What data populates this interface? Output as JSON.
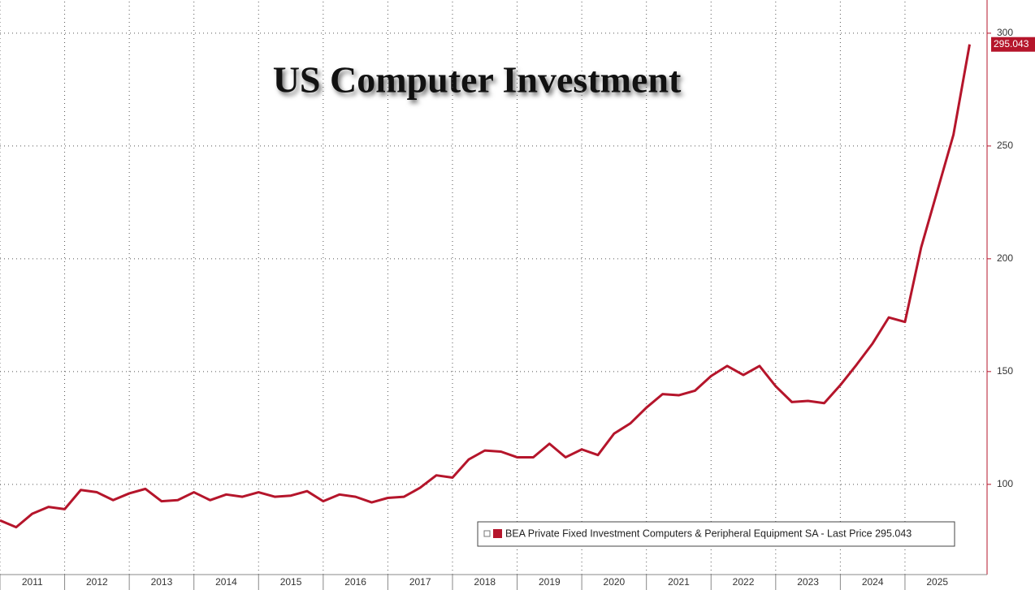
{
  "chart_data": {
    "type": "line",
    "title": "US Computer Investment",
    "x": [
      2011,
      2011.25,
      2011.5,
      2011.75,
      2012,
      2012.25,
      2012.5,
      2012.75,
      2013,
      2013.25,
      2013.5,
      2013.75,
      2014,
      2014.25,
      2014.5,
      2014.75,
      2015,
      2015.25,
      2015.5,
      2015.75,
      2016,
      2016.25,
      2016.5,
      2016.75,
      2017,
      2017.25,
      2017.5,
      2017.75,
      2018,
      2018.25,
      2018.5,
      2018.75,
      2019,
      2019.25,
      2019.5,
      2019.75,
      2020,
      2020.25,
      2020.5,
      2020.75,
      2021,
      2021.25,
      2021.5,
      2021.75,
      2022,
      2022.25,
      2022.5,
      2022.75,
      2023,
      2023.25,
      2023.5,
      2023.75,
      2024,
      2024.25,
      2024.5,
      2024.75,
      2025,
      2025.25,
      2025.5,
      2025.75,
      2026
    ],
    "series": [
      {
        "name": "BEA Private Fixed Investment Computers & Peripheral Equipment SA - Last Price 295.043",
        "color": "#b5152b",
        "values": [
          84,
          81,
          87,
          90,
          89,
          97.5,
          96.5,
          93,
          96,
          98,
          92.5,
          93,
          96.5,
          93,
          95.5,
          94.5,
          96.5,
          94.5,
          95,
          97,
          92.5,
          95.5,
          94.5,
          92,
          94,
          94.5,
          98.5,
          104,
          103,
          111,
          115,
          114.5,
          112,
          112,
          118,
          112,
          115.5,
          113,
          122.5,
          127,
          134,
          140,
          139.5,
          141.5,
          148,
          152.5,
          148.5,
          152.5,
          143.5,
          136.5,
          137,
          136,
          144,
          153,
          162.5,
          174,
          172,
          205,
          230,
          255,
          295.043
        ],
        "value_labels": {
          "60": "295.043"
        }
      }
    ],
    "xlim": [
      2011,
      2026.27
    ],
    "xticks": [
      {
        "value": 2011,
        "label": "2011"
      },
      {
        "value": 2012,
        "label": "2012"
      },
      {
        "value": 2013,
        "label": "2013"
      },
      {
        "value": 2014,
        "label": "2014"
      },
      {
        "value": 2015,
        "label": "2015"
      },
      {
        "value": 2016,
        "label": "2016"
      },
      {
        "value": 2017,
        "label": "2017"
      },
      {
        "value": 2018,
        "label": "2018"
      },
      {
        "value": 2019,
        "label": "2019"
      },
      {
        "value": 2020,
        "label": "2020"
      },
      {
        "value": 2021,
        "label": "2021"
      },
      {
        "value": 2022,
        "label": "2022"
      },
      {
        "value": 2023,
        "label": "2023"
      },
      {
        "value": 2024,
        "label": "2024"
      },
      {
        "value": 2025,
        "label": "2025"
      }
    ],
    "ylim": [
      60,
      314
    ],
    "yticks": [
      100,
      150,
      200,
      250,
      300
    ],
    "grid": true
  }
}
